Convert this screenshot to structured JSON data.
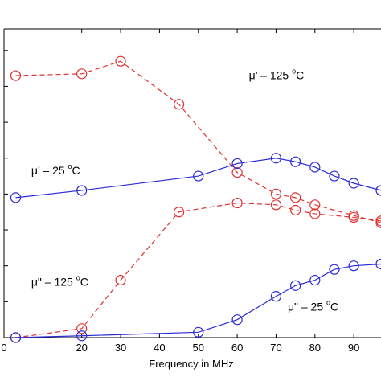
{
  "chart_data": {
    "type": "line",
    "xlabel": "Frequency in MHz",
    "ylabel": "",
    "xlim": [
      0,
      97
    ],
    "ylim": [
      0,
      8.6
    ],
    "x_ticks": [
      0,
      20,
      30,
      40,
      50,
      60,
      70,
      80,
      90
    ],
    "x_tick_labels": [
      "0",
      "20",
      "30",
      "40",
      "50",
      "60",
      "70",
      "80",
      "90"
    ],
    "y_ticks": [
      0,
      1,
      2,
      3,
      4,
      5,
      6,
      7,
      8
    ],
    "marker": "circle",
    "grid": false,
    "series": [
      {
        "id": "mu_prime_125",
        "color": "#e03030",
        "dash": "dashed",
        "x": [
          3,
          20,
          30,
          45,
          60,
          70,
          75,
          80,
          90,
          97
        ],
        "y": [
          7.3,
          7.35,
          7.7,
          6.5,
          4.6,
          4.0,
          3.9,
          3.7,
          3.4,
          3.2
        ]
      },
      {
        "id": "mu_prime_25",
        "color": "#2a2ad6",
        "dash": "solid",
        "x": [
          3,
          20,
          50,
          60,
          70,
          75,
          80,
          85,
          90,
          97
        ],
        "y": [
          3.9,
          4.1,
          4.5,
          4.85,
          5.0,
          4.9,
          4.75,
          4.5,
          4.3,
          4.1
        ]
      },
      {
        "id": "mu_double_prime_125",
        "color": "#e03030",
        "dash": "dashed",
        "x": [
          3,
          20,
          30,
          45,
          60,
          70,
          75,
          80,
          90,
          97
        ],
        "y": [
          0.0,
          0.25,
          1.6,
          3.5,
          3.75,
          3.7,
          3.55,
          3.45,
          3.35,
          3.25
        ]
      },
      {
        "id": "mu_double_prime_25",
        "color": "#2a2ad6",
        "dash": "solid",
        "x": [
          3,
          20,
          50,
          60,
          70,
          75,
          80,
          85,
          90,
          97
        ],
        "y": [
          0.0,
          0.05,
          0.15,
          0.5,
          1.15,
          1.45,
          1.6,
          1.9,
          2.0,
          2.05
        ]
      }
    ],
    "annotations": [
      {
        "id": "mu_prime_125",
        "text": "μ’ – 125",
        "sup": "o",
        "suffix": "C",
        "x": 63,
        "y": 7.2
      },
      {
        "id": "mu_prime_25",
        "text": "μ’ – 25",
        "sup": "o",
        "suffix": "C",
        "x": 7,
        "y": 4.55
      },
      {
        "id": "mu_double_prime_125",
        "text": "μ\" – 125",
        "sup": "o",
        "suffix": "C",
        "x": 7,
        "y": 1.45
      },
      {
        "id": "mu_double_prime_25",
        "text": "μ\" – 25",
        "sup": "o",
        "suffix": "C",
        "x": 73,
        "y": 0.75
      }
    ]
  }
}
